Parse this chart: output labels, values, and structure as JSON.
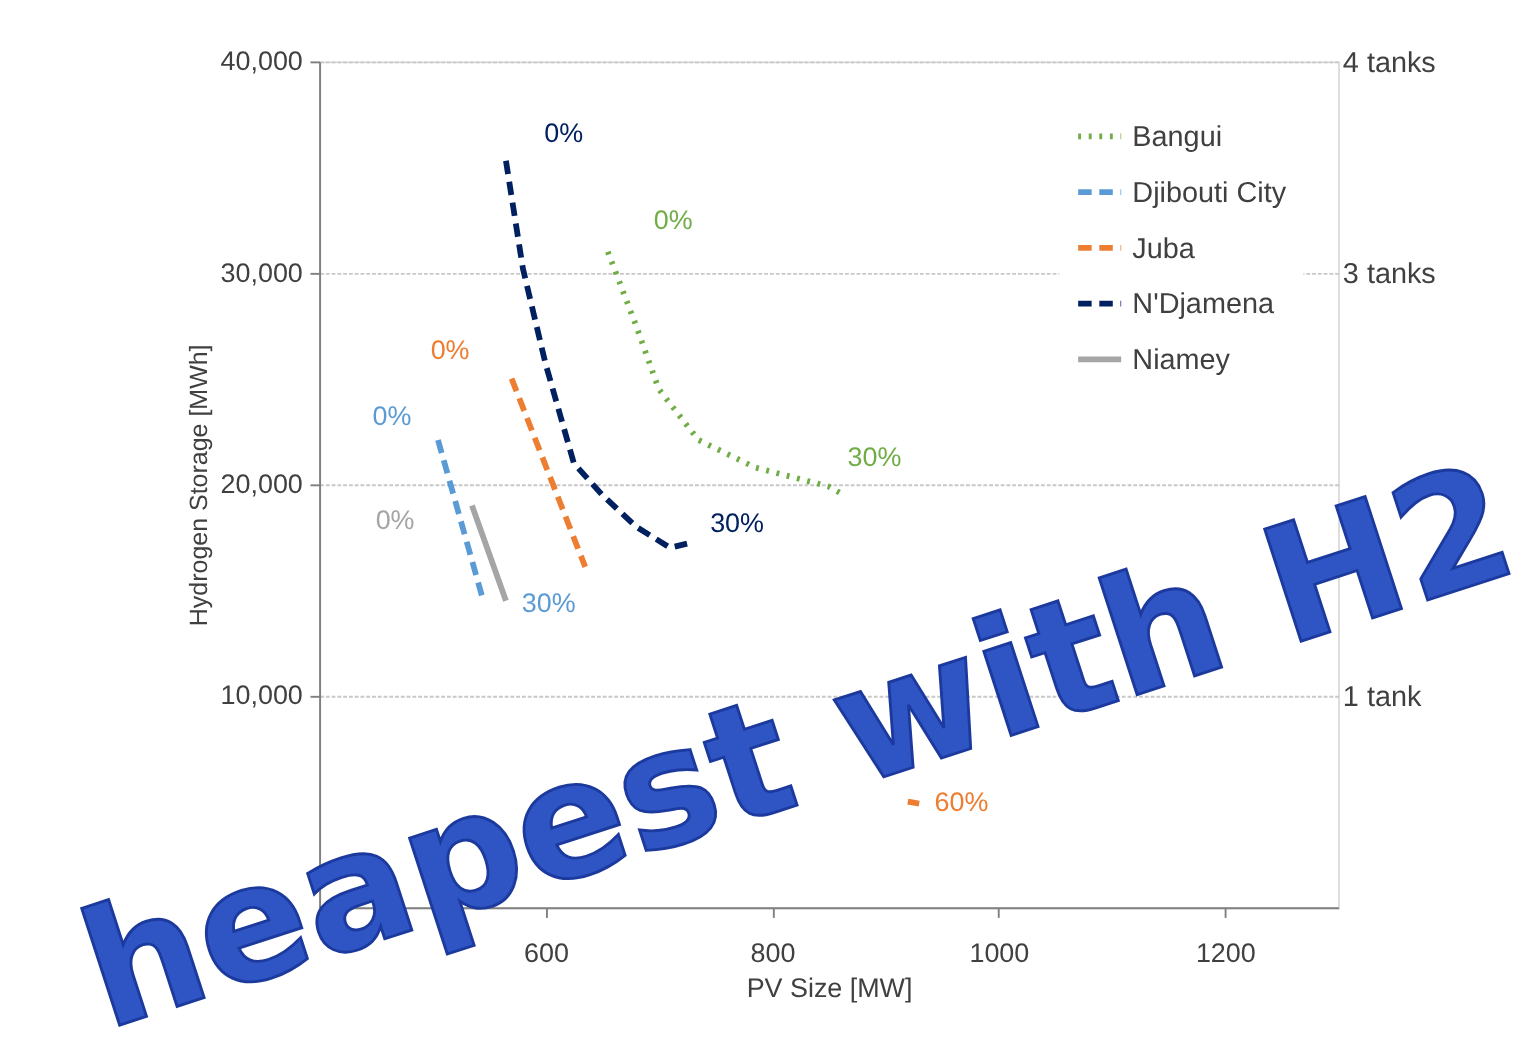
{
  "chart_data": {
    "type": "line",
    "xlabel": "PV Size [MW]",
    "ylabel": "Hydrogen Storage [MWh]",
    "xlim": [
      400,
      1300
    ],
    "xticks": [
      600,
      800,
      1000,
      1200
    ],
    "ylim": [
      0,
      40000
    ],
    "yticks": [
      {
        "value": 10000,
        "label": "10,000"
      },
      {
        "value": 20000,
        "label": "20,000"
      },
      {
        "value": 30000,
        "label": "30,000"
      },
      {
        "value": 40000,
        "label": "40,000"
      }
    ],
    "y2lim": [
      0,
      4
    ],
    "y2ticks": [
      {
        "value": 1,
        "label": "1 tank"
      },
      {
        "value": 3,
        "label": "3 tanks"
      },
      {
        "value": 4,
        "label": "4 tanks"
      }
    ],
    "grid": "y",
    "legend": "top right",
    "marker": "none",
    "series": [
      {
        "name": "Bangui",
        "color": "#70ad47",
        "line_style": "dotted",
        "x": [
          655,
          680,
          700,
          735,
          785,
          850,
          860
        ],
        "values": [
          31000,
          27500,
          24500,
          22100,
          20800,
          19900,
          19600
        ]
      },
      {
        "name": "Djibouti City",
        "color": "#5b9bd5",
        "line_style": "dashed",
        "x": [
          505,
          545
        ],
        "values": [
          22100,
          14500
        ]
      },
      {
        "name": "Juba",
        "color": "#ed7d31",
        "line_style": "dashed",
        "x": [
          570,
          635,
          null,
          920,
          930
        ],
        "values": [
          25000,
          16100,
          null,
          5000,
          4900
        ]
      },
      {
        "name": "N'Djamena",
        "color": "#002060",
        "line_style": "dashed",
        "x": [
          565,
          580,
          600,
          625,
          650,
          680,
          710,
          725
        ],
        "values": [
          35300,
          30200,
          25700,
          21000,
          19500,
          18000,
          17000,
          17200
        ]
      },
      {
        "name": "Niamey",
        "color": "#a5a5a5",
        "line_style": "solid",
        "x": [
          535,
          565
        ],
        "values": [
          19000,
          14500
        ]
      }
    ],
    "annotations": [
      {
        "text": "0%",
        "x": 565,
        "y": 35300
      },
      {
        "text": "0%",
        "x": 655,
        "y": 31000
      },
      {
        "text": "0%",
        "x": 570,
        "y": 25000
      },
      {
        "text": "0%",
        "x": 505,
        "y": 22100
      },
      {
        "text": "0%",
        "x": 535,
        "y": 19000
      },
      {
        "text": "30%",
        "x": 860,
        "y": 19600
      },
      {
        "text": "30%",
        "x": 725,
        "y": 17200
      },
      {
        "text": "30%",
        "x": 545,
        "y": 14500
      },
      {
        "text": "60%",
        "x": 930,
        "y": 4900
      },
      "heapest with H2"
    ]
  }
}
